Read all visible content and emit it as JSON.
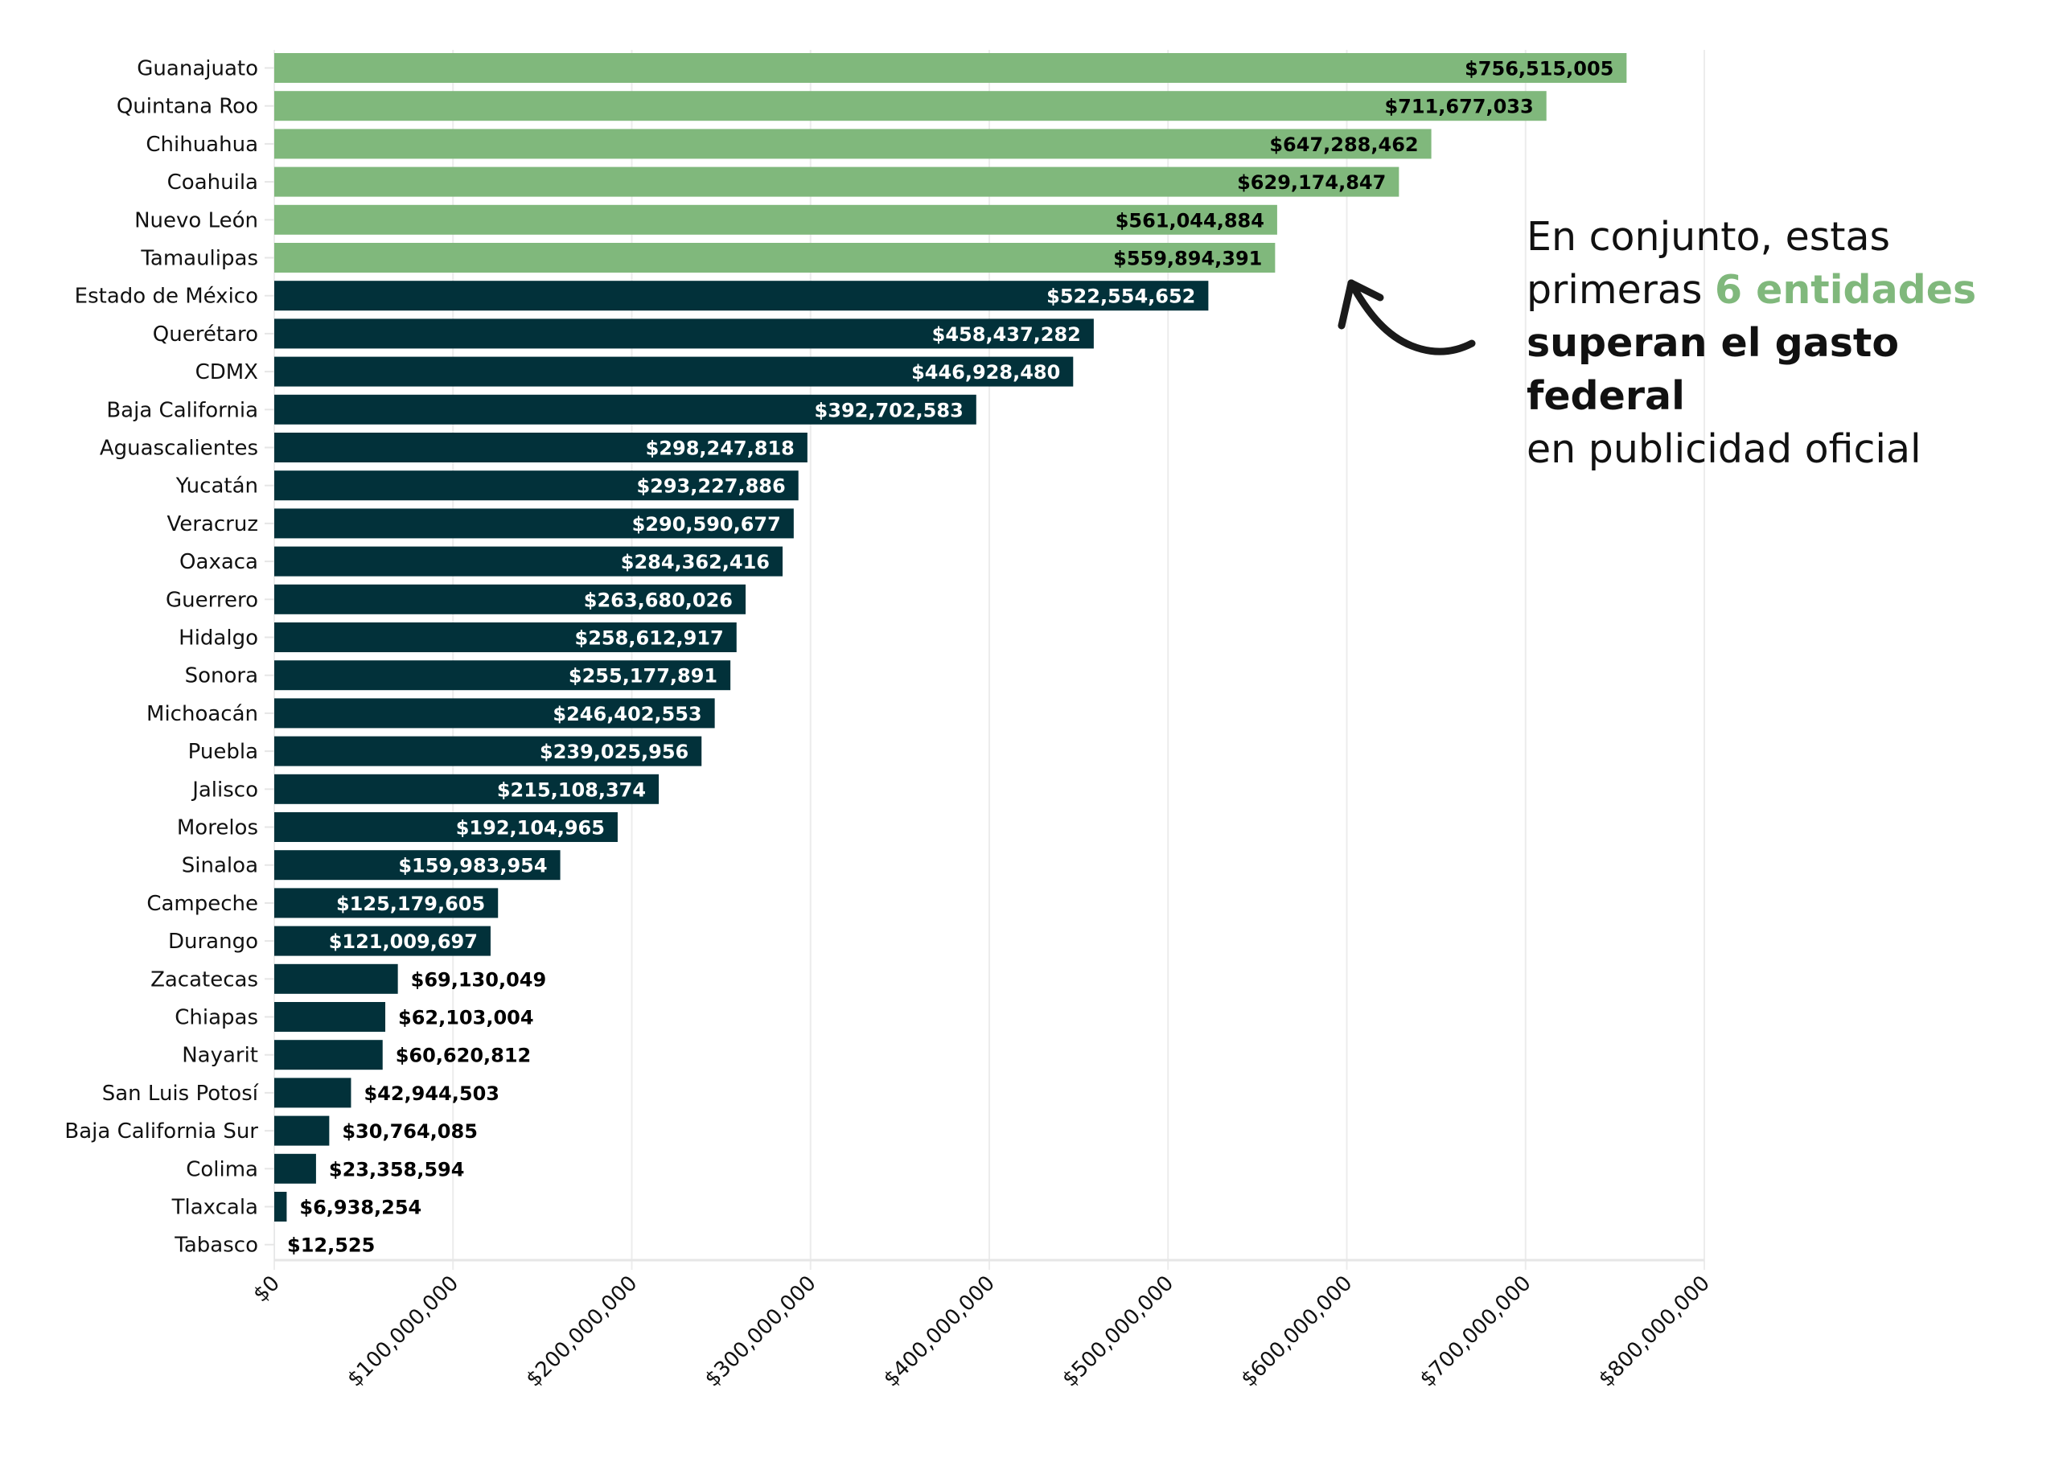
{
  "colors": {
    "highlight": "#80b87c",
    "default": "#02313a",
    "label_on_highlight": "#000000",
    "label_on_default": "#ffffff",
    "label_outside": "#000000"
  },
  "annotation": {
    "line1": "En conjunto, estas",
    "line2_prefix": "primeras ",
    "line2_highlight": "6 entidades",
    "line3_bold": "superan el gasto federal",
    "line4": "en publicidad oficial",
    "arrow_icon": "curved-arrow-icon"
  },
  "chart_data": {
    "type": "bar",
    "orientation": "horizontal",
    "title": "",
    "xlabel": "",
    "ylabel": "",
    "xlim": [
      0,
      800000000
    ],
    "grid": true,
    "highlight_count": 6,
    "x_ticks": [
      0,
      100000000,
      200000000,
      300000000,
      400000000,
      500000000,
      600000000,
      700000000,
      800000000
    ],
    "x_tick_labels": [
      "$0",
      "$100,000,000",
      "$200,000,000",
      "$300,000,000",
      "$400,000,000",
      "$500,000,000",
      "$600,000,000",
      "$700,000,000",
      "$800,000,000"
    ],
    "categories": [
      "Guanajuato",
      "Quintana Roo",
      "Chihuahua",
      "Coahuila",
      "Nuevo León",
      "Tamaulipas",
      "Estado de México",
      "Querétaro",
      "CDMX",
      "Baja California",
      "Aguascalientes",
      "Yucatán",
      "Veracruz",
      "Oaxaca",
      "Guerrero",
      "Hidalgo",
      "Sonora",
      "Michoacán",
      "Puebla",
      "Jalisco",
      "Morelos",
      "Sinaloa",
      "Campeche",
      "Durango",
      "Zacatecas",
      "Chiapas",
      "Nayarit",
      "San Luis Potosí",
      "Baja California Sur",
      "Colima",
      "Tlaxcala",
      "Tabasco"
    ],
    "values": [
      756515005,
      711677033,
      647288462,
      629174847,
      561044884,
      559894391,
      522554652,
      458437282,
      446928480,
      392702583,
      298247818,
      293227886,
      290590677,
      284362416,
      263680026,
      258612917,
      255177891,
      246402553,
      239025956,
      215108374,
      192104965,
      159983954,
      125179605,
      121009697,
      69130049,
      62103004,
      60620812,
      42944503,
      30764085,
      23358594,
      6938254,
      12525
    ],
    "value_labels": [
      "$756,515,005",
      "$711,677,033",
      "$647,288,462",
      "$629,174,847",
      "$561,044,884",
      "$559,894,391",
      "$522,554,652",
      "$458,437,282",
      "$446,928,480",
      "$392,702,583",
      "$298,247,818",
      "$293,227,886",
      "$290,590,677",
      "$284,362,416",
      "$263,680,026",
      "$258,612,917",
      "$255,177,891",
      "$246,402,553",
      "$239,025,956",
      "$215,108,374",
      "$192,104,965",
      "$159,983,954",
      "$125,179,605",
      "$121,009,697",
      "$69,130,049",
      "$62,103,004",
      "$60,620,812",
      "$42,944,503",
      "$30,764,085",
      "$23,358,594",
      "$6,938,254",
      "$12,525"
    ]
  }
}
